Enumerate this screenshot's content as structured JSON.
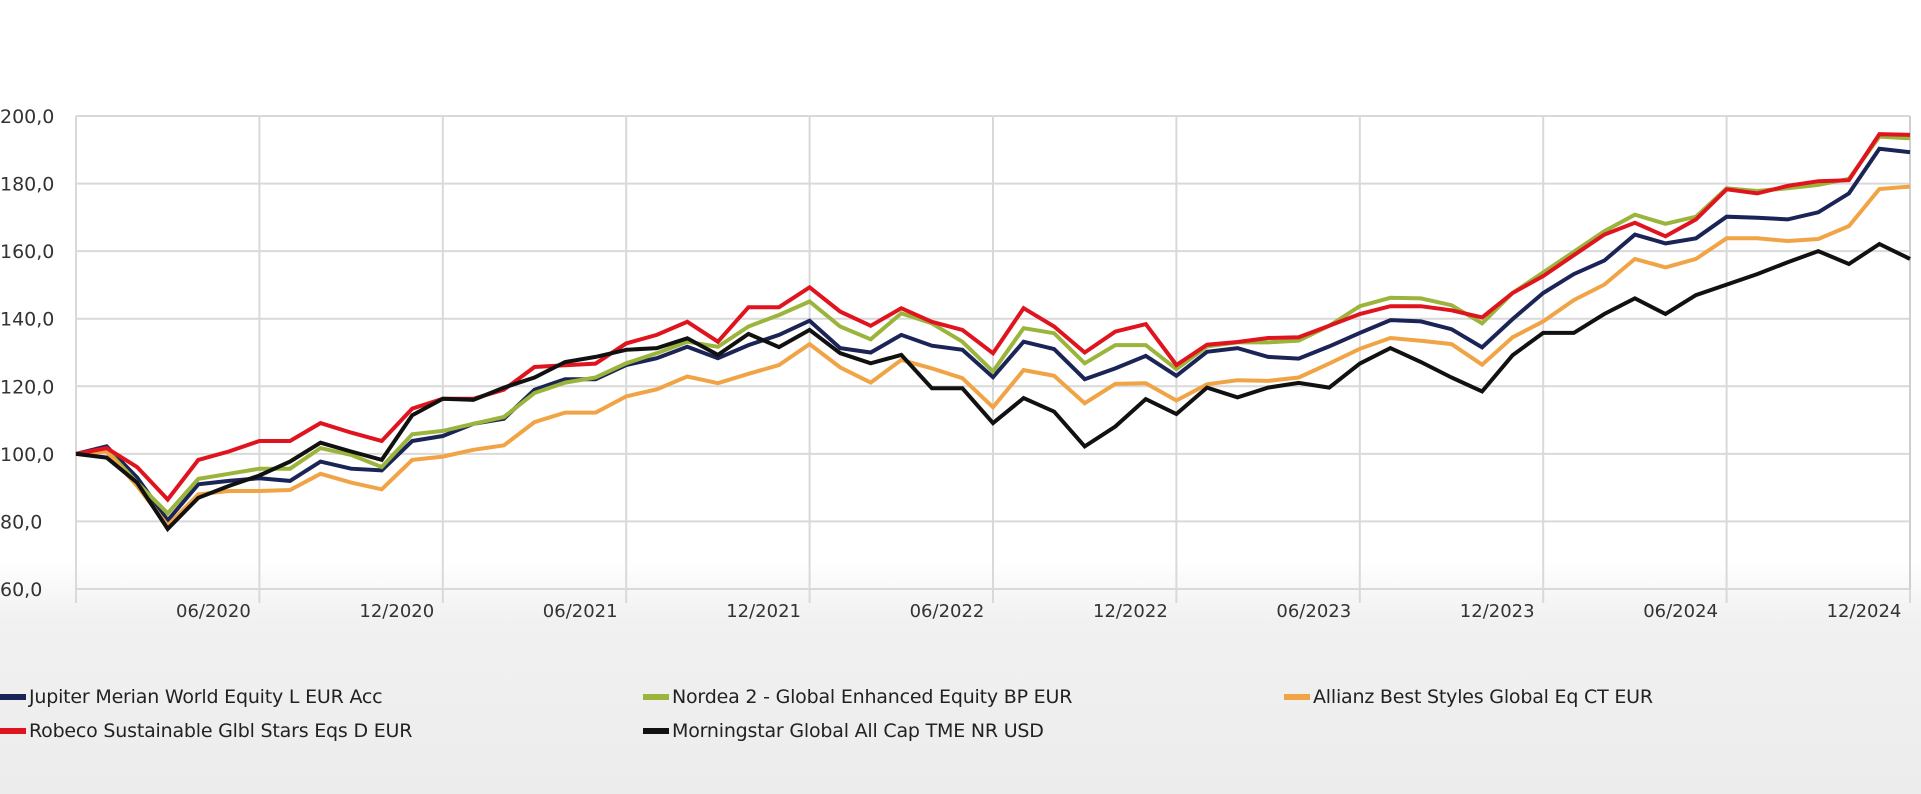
{
  "chart_data": {
    "type": "line",
    "title": "",
    "xlabel": "",
    "ylabel": "",
    "ylim": [
      60,
      200
    ],
    "y_ticks": [
      "60,0",
      "80,0",
      "100,0",
      "120,0",
      "140,0",
      "160,0",
      "180,0",
      "200,0"
    ],
    "y_tick_values": [
      60,
      80,
      100,
      120,
      140,
      160,
      180,
      200
    ],
    "x_tick_labels": [
      "06/2020",
      "12/2020",
      "06/2021",
      "12/2021",
      "06/2022",
      "12/2022",
      "06/2023",
      "12/2023",
      "06/2024",
      "12/2024"
    ],
    "x_start": "12/2019",
    "x_step": "monthly",
    "x_count": 61,
    "grid": true,
    "legend_placement": "bottom",
    "series": [
      {
        "name": "Jupiter Merian World Equity L EUR Acc",
        "color": "#1b2457",
        "values": [
          100,
          102.2,
          93,
          80.3,
          91,
          92,
          92.8,
          92,
          97.7,
          95.6,
          95.1,
          103.8,
          105.3,
          108.9,
          110.4,
          119,
          122.1,
          122.1,
          126.3,
          128.3,
          131.7,
          128.3,
          132.2,
          135.2,
          139.4,
          131.3,
          130,
          135.2,
          132,
          130.8,
          122.7,
          133.2,
          131,
          122.1,
          125.3,
          129,
          123.1,
          130.2,
          131.3,
          128.7,
          128.2,
          131.8,
          135.8,
          139.6,
          139.2,
          136.9,
          131.5,
          139.9,
          147.6,
          153.2,
          157.2,
          164.9,
          162.3,
          163.8,
          170.2,
          169.9,
          169.4,
          171.5,
          177.1,
          190.3,
          189.3
        ]
      },
      {
        "name": "Nordea 2 - Global Enhanced Equity BP EUR",
        "color": "#9bb43c",
        "values": [
          100,
          101.2,
          91.5,
          82.4,
          92.6,
          94.1,
          95.6,
          95.6,
          101.7,
          99.7,
          96.1,
          105.8,
          106.8,
          108.9,
          110.9,
          118,
          121.1,
          122.6,
          126.8,
          129.8,
          133.2,
          131.7,
          137.7,
          141.1,
          145.1,
          137.7,
          133.9,
          141.6,
          138.6,
          133.2,
          124.4,
          137.2,
          135.7,
          126.8,
          132.2,
          132.2,
          125.1,
          131.8,
          133,
          133,
          133.5,
          137.9,
          143.7,
          146.2,
          146,
          144,
          138.6,
          147.6,
          153.7,
          159.8,
          165.9,
          170.8,
          168.1,
          170.2,
          178.6,
          177.8,
          178.6,
          179.6,
          181.4,
          193.9,
          193.4
        ]
      },
      {
        "name": "Allianz Best Styles Global Eq CT EUR",
        "color": "#f0a445",
        "values": [
          100,
          100.7,
          90.5,
          78.8,
          88,
          89,
          89,
          89.3,
          94.1,
          91.5,
          89.5,
          98.2,
          99.2,
          101.2,
          102.5,
          109.4,
          112.2,
          112.2,
          117,
          119.1,
          122.9,
          120.9,
          123.7,
          126.3,
          132.5,
          125.6,
          121.1,
          127.8,
          125.3,
          122.4,
          113.8,
          124.8,
          123.1,
          115,
          120.7,
          120.9,
          115.8,
          120.6,
          121.8,
          121.6,
          122.6,
          126.7,
          131.1,
          134.3,
          133.5,
          132.5,
          126.4,
          134.5,
          139.2,
          145.5,
          150.1,
          157.7,
          155.2,
          157.7,
          163.8,
          163.8,
          163,
          163.6,
          167.4,
          178.4,
          179.1
        ]
      },
      {
        "name": "Robeco Sustainable Glbl Stars Eqs D EUR",
        "color": "#e0141e",
        "values": [
          100,
          101.7,
          96.1,
          86.5,
          98.2,
          100.7,
          103.8,
          103.8,
          109.1,
          106.3,
          103.8,
          113.4,
          116.3,
          116.3,
          119,
          125.7,
          126.2,
          126.7,
          132.7,
          135.2,
          139.1,
          133.2,
          143.4,
          143.4,
          149.3,
          142.1,
          137.9,
          143.1,
          139.1,
          136.7,
          129.8,
          143.1,
          137.7,
          130,
          136.2,
          138.4,
          126.3,
          132.3,
          133.1,
          134.3,
          134.5,
          137.9,
          141.4,
          143.7,
          143.7,
          142.5,
          140.4,
          147.6,
          152.6,
          158.8,
          164.9,
          168.4,
          164.4,
          169.4,
          178.3,
          177.1,
          179.3,
          180.7,
          181,
          194.6,
          194.4
        ]
      },
      {
        "name": "Morningstar Global All Cap TME NR USD",
        "color": "#111111",
        "values": [
          100,
          98.9,
          91.5,
          77.8,
          87,
          90.5,
          93.6,
          97.7,
          103.3,
          100.7,
          98.2,
          111.4,
          116.3,
          116,
          119.6,
          122.6,
          127.2,
          128.7,
          130.8,
          131.3,
          134.2,
          129.3,
          135.5,
          131.6,
          136.7,
          129.8,
          126.8,
          129.3,
          119.4,
          119.4,
          109.1,
          116.5,
          112.5,
          102.2,
          108.1,
          116.2,
          111.8,
          119.6,
          116.7,
          119.6,
          121,
          119.6,
          126.7,
          131.3,
          127.2,
          122.6,
          118.5,
          129.2,
          135.8,
          135.8,
          141.4,
          146,
          141.4,
          147,
          150.1,
          153.2,
          156.7,
          160,
          156.2,
          162.1,
          157.7
        ]
      }
    ]
  }
}
